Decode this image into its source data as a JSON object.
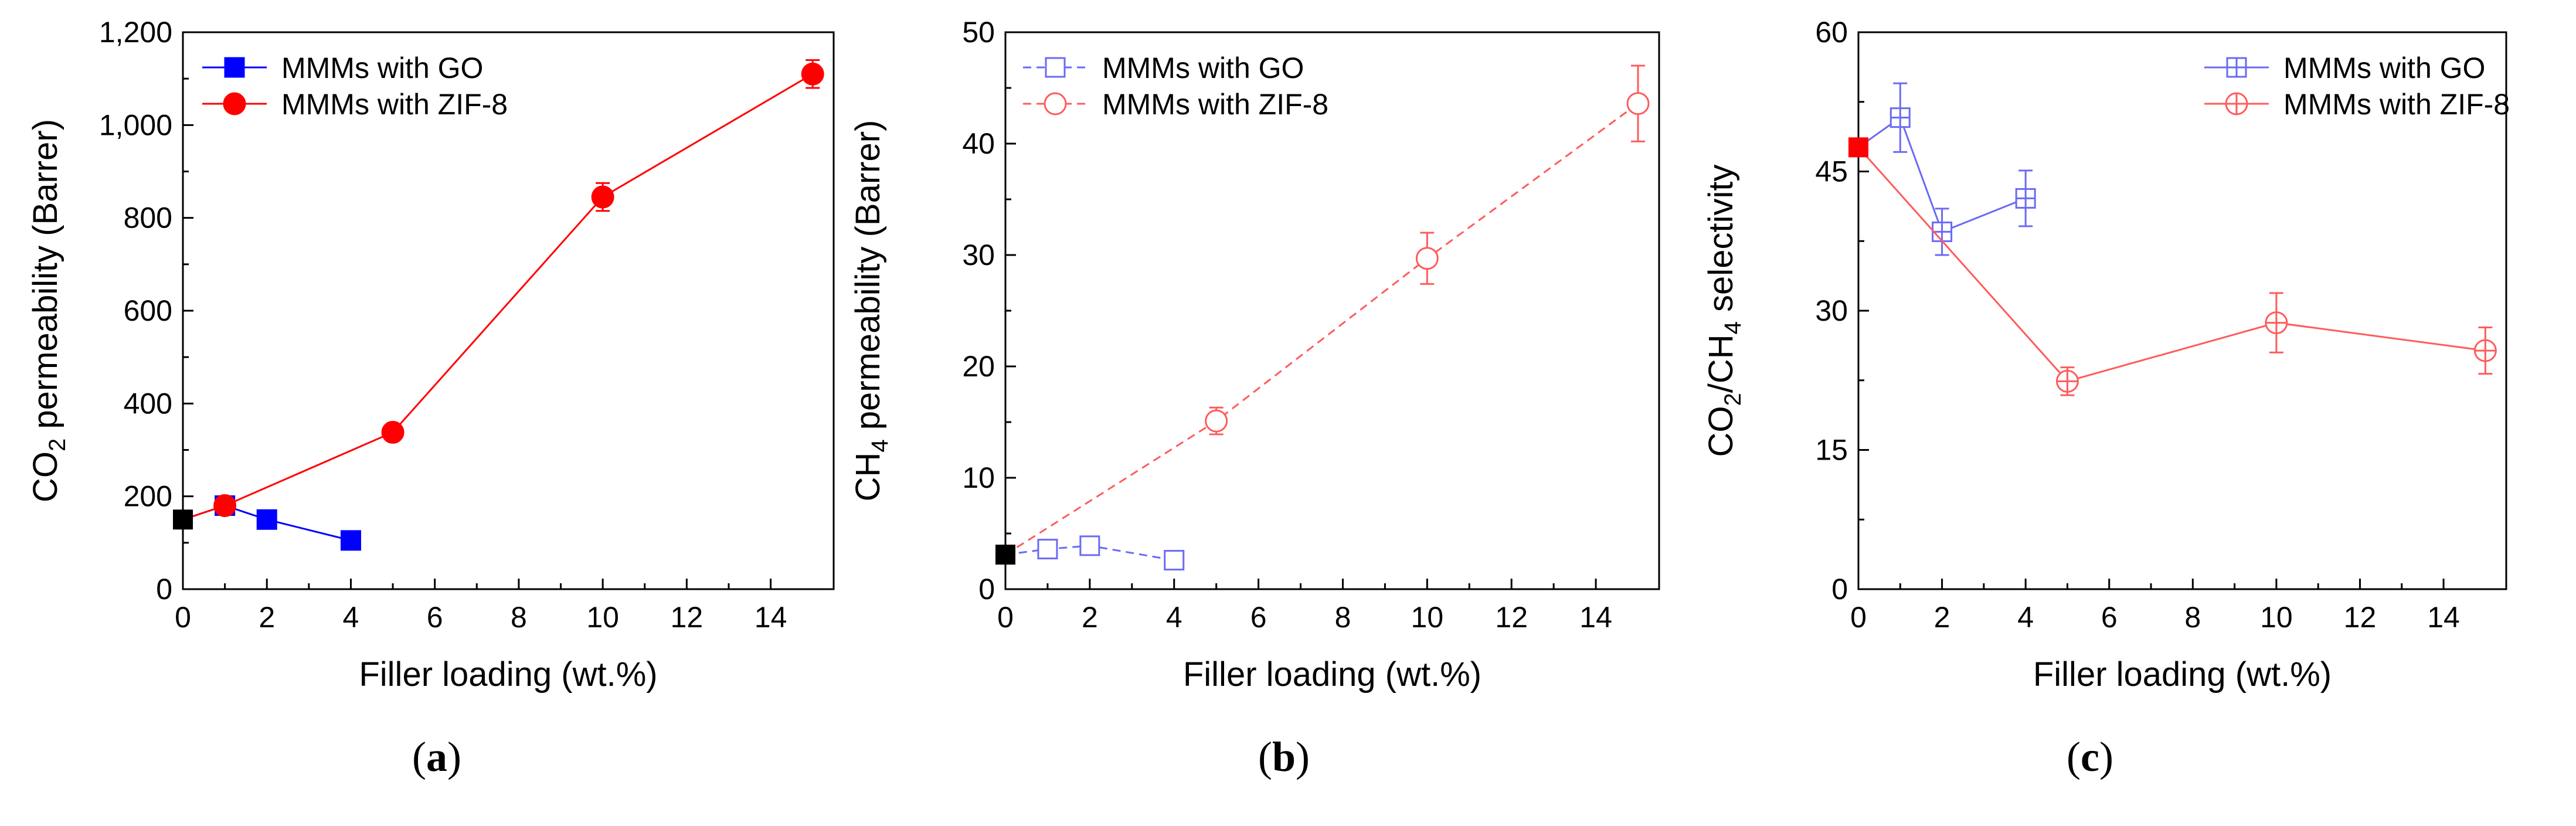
{
  "figure": {
    "captions": [
      "(a)",
      "(b)",
      "(c)"
    ],
    "caption_letters": [
      "a",
      "b",
      "c"
    ]
  },
  "chart_data": [
    {
      "id": "a",
      "type": "line",
      "title": "",
      "xlabel": "Filler loading (wt.%)",
      "ylabel": "CO2 permeability (Barrer)",
      "ylabel_parts": [
        "CO",
        "2",
        " permeability (Barrer)"
      ],
      "xlim": [
        0,
        15.5
      ],
      "ylim": [
        0,
        1200
      ],
      "xticks": [
        0,
        2,
        4,
        6,
        8,
        10,
        12,
        14
      ],
      "yticks": [
        0,
        200,
        400,
        600,
        800,
        1000,
        1200
      ],
      "ytick_labels": [
        "0",
        "200",
        "400",
        "600",
        "800",
        "1,000",
        "1,200"
      ],
      "legend_position": "top-left",
      "neat_point": {
        "x": 0,
        "y": 150,
        "color": "#000000"
      },
      "series": [
        {
          "name": "MMMs with GO",
          "color": "#0000ff",
          "marker": "square-filled",
          "dash": "solid",
          "x": [
            0,
            1,
            2,
            4
          ],
          "y": [
            150,
            180,
            150,
            105
          ],
          "err": [
            0,
            0,
            0,
            0
          ]
        },
        {
          "name": "MMMs with ZIF-8",
          "color": "#ff0000",
          "marker": "circle-filled",
          "dash": "solid",
          "x": [
            0,
            1,
            5,
            10,
            15
          ],
          "y": [
            150,
            180,
            338,
            845,
            1110
          ],
          "err": [
            0,
            0,
            0,
            30,
            30
          ]
        }
      ]
    },
    {
      "id": "b",
      "type": "line",
      "title": "",
      "xlabel": "Filler loading (wt.%)",
      "ylabel": "CH4 permeability (Barrer)",
      "ylabel_parts": [
        "CH",
        "4",
        " permeability (Barrer)"
      ],
      "xlim": [
        0,
        15.5
      ],
      "ylim": [
        0,
        50
      ],
      "xticks": [
        0,
        2,
        4,
        6,
        8,
        10,
        12,
        14
      ],
      "yticks": [
        0,
        10,
        20,
        30,
        40,
        50
      ],
      "ytick_labels": [
        "0",
        "10",
        "20",
        "30",
        "40",
        "50"
      ],
      "legend_position": "top-left",
      "neat_point": {
        "x": 0,
        "y": 3.1,
        "color": "#000000"
      },
      "series": [
        {
          "name": "MMMs with GO",
          "color": "#6a6af5",
          "marker": "square-open",
          "dash": "dashed",
          "x": [
            0,
            1,
            2,
            4
          ],
          "y": [
            3.1,
            3.6,
            3.9,
            2.6
          ],
          "err": [
            0,
            0.3,
            0.3,
            0.2
          ]
        },
        {
          "name": "MMMs with ZIF-8",
          "color": "#ff5b5b",
          "marker": "circle-open",
          "dash": "dashed",
          "x": [
            0,
            5,
            10,
            15
          ],
          "y": [
            3.1,
            15.1,
            29.7,
            43.6
          ],
          "err": [
            0,
            1.2,
            2.3,
            3.4
          ]
        }
      ]
    },
    {
      "id": "c",
      "type": "line",
      "title": "",
      "xlabel": "Filler loading (wt.%)",
      "ylabel": "CO2/CH4 selectivity",
      "ylabel_parts": [
        "CO",
        "2",
        "/CH",
        "4",
        " selectivity"
      ],
      "xlim": [
        0,
        15.5
      ],
      "ylim": [
        0,
        60
      ],
      "xticks": [
        0,
        2,
        4,
        6,
        8,
        10,
        12,
        14
      ],
      "yticks": [
        0,
        15,
        30,
        45,
        60
      ],
      "ytick_labels": [
        "0",
        "15",
        "30",
        "45",
        "60"
      ],
      "legend_position": "top-right",
      "neat_point": {
        "x": 0,
        "y": 47.6,
        "color": "#ff0000"
      },
      "series": [
        {
          "name": "MMMs with GO",
          "color": "#6a6af5",
          "marker": "square-crossed",
          "dash": "solid",
          "x": [
            0,
            1,
            2,
            4
          ],
          "y": [
            47.6,
            50.8,
            38.5,
            42.1
          ],
          "err": [
            0,
            3.7,
            2.5,
            3.0
          ]
        },
        {
          "name": "MMMs with ZIF-8",
          "color": "#ff5b5b",
          "marker": "circle-crossed",
          "dash": "solid",
          "x": [
            0,
            5,
            10,
            15
          ],
          "y": [
            47.6,
            22.4,
            28.7,
            25.7
          ],
          "err": [
            0,
            1.5,
            3.2,
            2.5
          ]
        }
      ]
    }
  ]
}
